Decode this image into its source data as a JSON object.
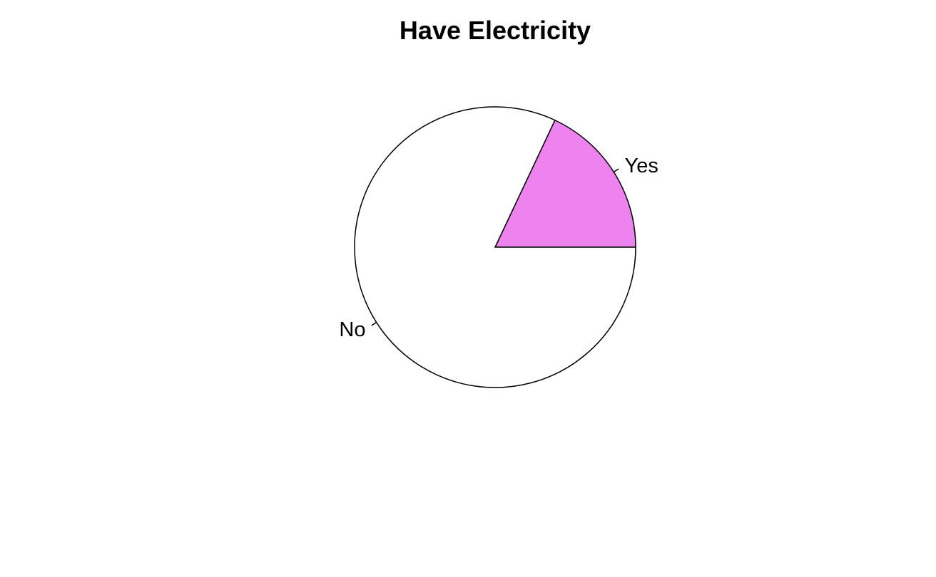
{
  "chart_data": {
    "type": "pie",
    "title": "Have Electricity",
    "slices": [
      {
        "label": "Yes",
        "value": 18,
        "color": "#EE82EE"
      },
      {
        "label": "No",
        "value": 82,
        "color": "#FFFFFF"
      }
    ],
    "start_angle_deg": 0,
    "direction": "counterclockwise",
    "border_color": "#000000"
  }
}
